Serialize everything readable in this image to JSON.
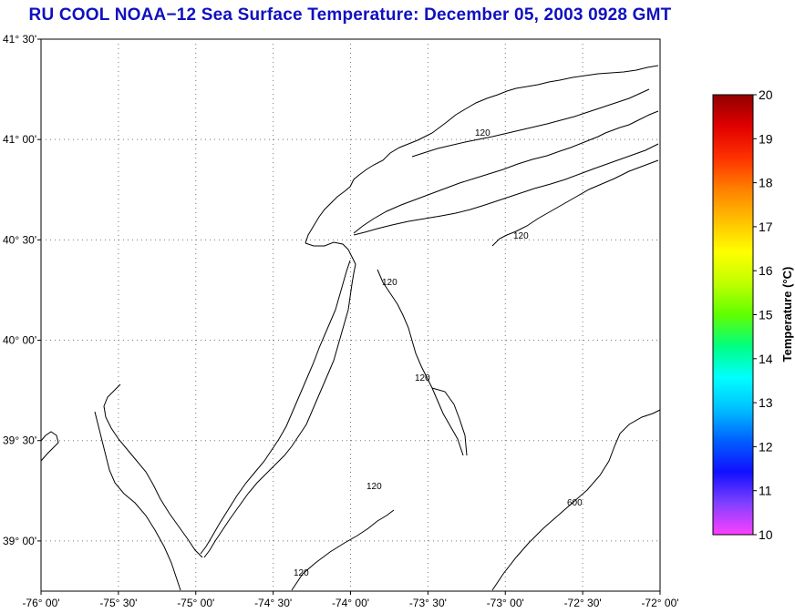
{
  "title": "RU COOL  NOAA−12  Sea Surface Temperature:  December 05, 2003 0928 GMT",
  "map": {
    "lat_ticks": [
      {
        "deg": "41",
        "min": "30'",
        "value": 41.5
      },
      {
        "deg": "41",
        "min": "00'",
        "value": 41.0
      },
      {
        "deg": "40",
        "min": "30'",
        "value": 40.5
      },
      {
        "deg": "40",
        "min": "00'",
        "value": 40.0
      },
      {
        "deg": "39",
        "min": "30'",
        "value": 39.5
      },
      {
        "deg": "39",
        "min": "00'",
        "value": 39.0
      }
    ],
    "lon_ticks": [
      {
        "deg": "-76",
        "min": "00'",
        "value": -76.0
      },
      {
        "deg": "-75",
        "min": "30'",
        "value": -75.5
      },
      {
        "deg": "-75",
        "min": "00'",
        "value": -75.0
      },
      {
        "deg": "-74",
        "min": "30'",
        "value": -74.5
      },
      {
        "deg": "-74",
        "min": "00'",
        "value": -74.0
      },
      {
        "deg": "-73",
        "min": "30'",
        "value": -73.5
      },
      {
        "deg": "-73",
        "min": "00'",
        "value": -73.0
      },
      {
        "deg": "-72",
        "min": "30'",
        "value": -72.5
      },
      {
        "deg": "-72",
        "min": "00'",
        "value": -72.0
      }
    ],
    "lat_range": [
      38.75,
      41.5
    ],
    "lon_range": [
      -76.0,
      -72.0
    ],
    "grid": "dotted",
    "contour_labels": [
      "120",
      "120",
      "120",
      "120",
      "120",
      "120",
      "600"
    ]
  },
  "colorbar": {
    "title": "Temperature (°C)",
    "min": 10,
    "max": 20,
    "ticks": [
      "20",
      "19",
      "18",
      "17",
      "16",
      "15",
      "14",
      "13",
      "12",
      "11",
      "10"
    ],
    "colors": [
      "#ff40ff",
      "#8040ff",
      "#1010ff",
      "#0060ff",
      "#00c0ff",
      "#00ffff",
      "#00ff80",
      "#60ff00",
      "#c0ff00",
      "#ffff00",
      "#ffc000",
      "#ff8000",
      "#ff3000",
      "#e00000",
      "#900000"
    ]
  }
}
